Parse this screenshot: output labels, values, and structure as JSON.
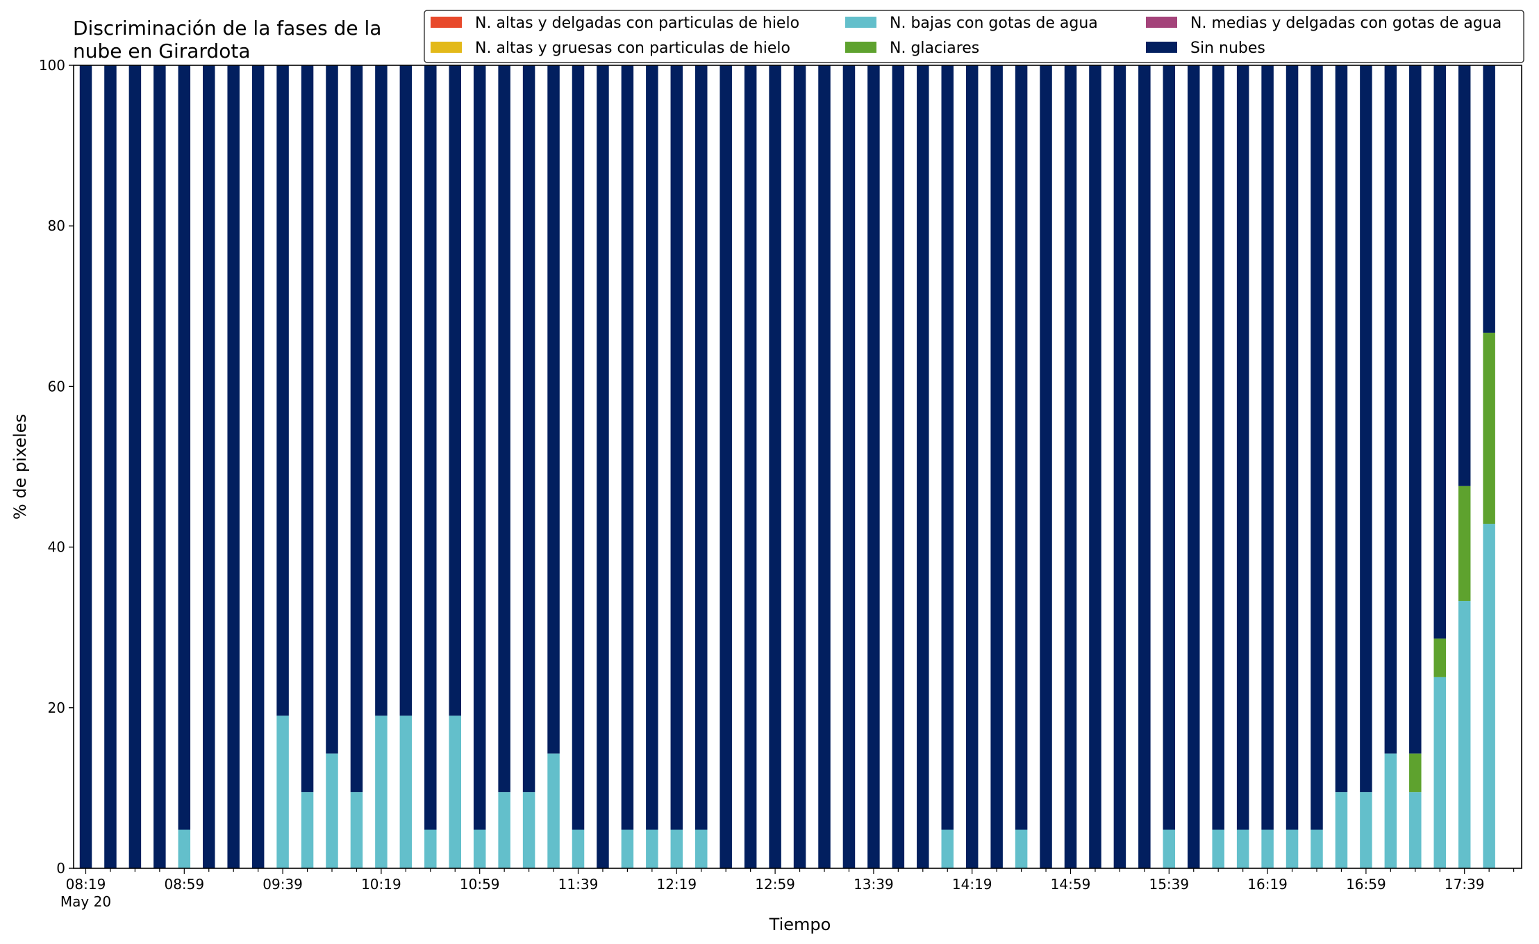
{
  "chart_data": {
    "type": "bar",
    "stacked": true,
    "title": [
      "Discriminación de la fases de la",
      "nube en Girardota"
    ],
    "xlabel": "Tiempo",
    "ylabel": "% de pixeles",
    "ylim": [
      0,
      100
    ],
    "yticks": [
      0,
      20,
      40,
      60,
      80,
      100
    ],
    "xtick_labels": [
      "08:19",
      "08:59",
      "09:39",
      "10:19",
      "10:59",
      "11:39",
      "12:19",
      "12:59",
      "13:39",
      "14:19",
      "14:59",
      "15:39",
      "16:19",
      "16:59",
      "17:39"
    ],
    "xtick_sublabel": "May 20",
    "x_start": "08:19",
    "x_interval_minutes": 10,
    "legend": {
      "position": "top-right",
      "columns": 3
    },
    "series": [
      {
        "name": "N. altas y delgadas con particulas de hielo",
        "color": "#e8492b",
        "values": [
          0,
          0,
          0,
          0,
          0,
          0,
          0,
          0,
          0,
          0,
          0,
          0,
          0,
          0,
          0,
          0,
          0,
          0,
          0,
          0,
          0,
          0,
          0,
          0,
          0,
          0,
          0,
          0,
          0,
          0,
          0,
          0,
          0,
          0,
          0,
          0,
          0,
          0,
          0,
          0,
          0,
          0,
          0,
          0,
          0,
          0,
          0,
          0,
          0,
          0,
          0,
          0,
          0,
          0,
          0,
          0,
          0,
          0
        ]
      },
      {
        "name": "N. altas y gruesas con particulas de hielo",
        "color": "#e3b919",
        "values": [
          0,
          0,
          0,
          0,
          0,
          0,
          0,
          0,
          0,
          0,
          0,
          0,
          0,
          0,
          0,
          0,
          0,
          0,
          0,
          0,
          0,
          0,
          0,
          0,
          0,
          0,
          0,
          0,
          0,
          0,
          0,
          0,
          0,
          0,
          0,
          0,
          0,
          0,
          0,
          0,
          0,
          0,
          0,
          0,
          0,
          0,
          0,
          0,
          0,
          0,
          0,
          0,
          0,
          0,
          0,
          0,
          0,
          0
        ]
      },
      {
        "name": "N. bajas con gotas de agua",
        "color": "#63bfcb",
        "values": [
          0,
          0,
          0,
          0,
          4.8,
          0,
          0,
          0,
          19,
          9.5,
          14.3,
          9.5,
          19,
          19,
          4.8,
          19,
          4.8,
          9.5,
          9.5,
          14.3,
          4.8,
          0,
          4.8,
          4.8,
          4.8,
          4.8,
          0,
          0,
          0,
          0,
          0,
          0,
          0,
          0,
          0,
          4.8,
          0,
          0,
          4.8,
          0,
          0,
          0,
          0,
          0,
          4.8,
          0,
          4.8,
          4.8,
          4.8,
          4.8,
          4.8,
          9.5,
          9.5,
          14.3,
          9.5,
          23.8,
          33.3,
          42.9
        ]
      },
      {
        "name": "N. glaciares",
        "color": "#5ea22e",
        "values": [
          0,
          0,
          0,
          0,
          0,
          0,
          0,
          0,
          0,
          0,
          0,
          0,
          0,
          0,
          0,
          0,
          0,
          0,
          0,
          0,
          0,
          0,
          0,
          0,
          0,
          0,
          0,
          0,
          0,
          0,
          0,
          0,
          0,
          0,
          0,
          0,
          0,
          0,
          0,
          0,
          0,
          0,
          0,
          0,
          0,
          0,
          0,
          0,
          0,
          0,
          0,
          0,
          0,
          0,
          4.8,
          4.8,
          14.3,
          23.8
        ]
      },
      {
        "name": "N. medias y delgadas con gotas de agua",
        "color": "#a4437a",
        "values": [
          0,
          0,
          0,
          0,
          0,
          0,
          0,
          0,
          0,
          0,
          0,
          0,
          0,
          0,
          0,
          0,
          0,
          0,
          0,
          0,
          0,
          0,
          0,
          0,
          0,
          0,
          0,
          0,
          0,
          0,
          0,
          0,
          0,
          0,
          0,
          0,
          0,
          0,
          0,
          0,
          0,
          0,
          0,
          0,
          0,
          0,
          0,
          0,
          0,
          0,
          0,
          0,
          0,
          0,
          0,
          0,
          0,
          0
        ]
      },
      {
        "name": "Sin nubes",
        "color": "#021f5f",
        "values": [
          100,
          100,
          100,
          100,
          95.2,
          100,
          100,
          100,
          81,
          90.5,
          85.7,
          90.5,
          81,
          81,
          95.2,
          81,
          95.2,
          90.5,
          90.5,
          85.7,
          95.2,
          100,
          95.2,
          95.2,
          95.2,
          95.2,
          100,
          100,
          100,
          100,
          100,
          100,
          100,
          100,
          100,
          95.2,
          100,
          100,
          95.2,
          100,
          100,
          100,
          100,
          100,
          95.2,
          100,
          95.2,
          95.2,
          95.2,
          95.2,
          95.2,
          90.5,
          90.5,
          85.7,
          85.7,
          71.4,
          52.4,
          33.3
        ]
      }
    ]
  }
}
